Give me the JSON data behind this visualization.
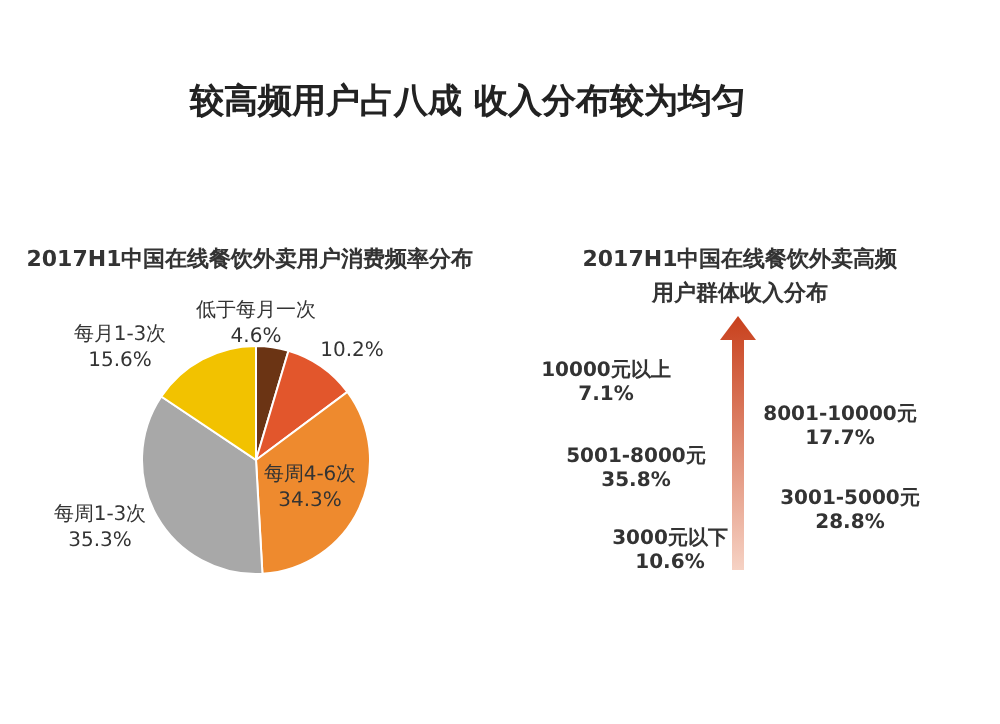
{
  "chart_data": [
    {
      "type": "pie",
      "title": "2017H1中国在线餐饮外卖用户消费频率分布",
      "annotations": [
        "较高频用户占八成 收入分布较为均匀"
      ],
      "categories": [
        "低于每月一次",
        null,
        "每周4-6次",
        "每周1-3次",
        "每月1-3次"
      ],
      "values": [
        4.6,
        10.2,
        34.3,
        35.3,
        15.6
      ],
      "colors": [
        "#6b3414",
        "#e2562c",
        "#ee8a2e",
        "#a8a8a8",
        "#f2c200"
      ],
      "value_labels": [
        "4.6%",
        "10.2%",
        "34.3%",
        "35.3%",
        "15.6%"
      ]
    },
    {
      "type": "other",
      "title": "2017H1中国在线餐饮外卖高频用户群体收入分布",
      "categories": [
        "10000元以上",
        "8001-10000元",
        "5001-8000元",
        "3001-5000元",
        "3000元以下"
      ],
      "value_labels": [
        "7.1%",
        "17.7%",
        "35.8%",
        "28.8%",
        "10.6%"
      ]
    }
  ]
}
